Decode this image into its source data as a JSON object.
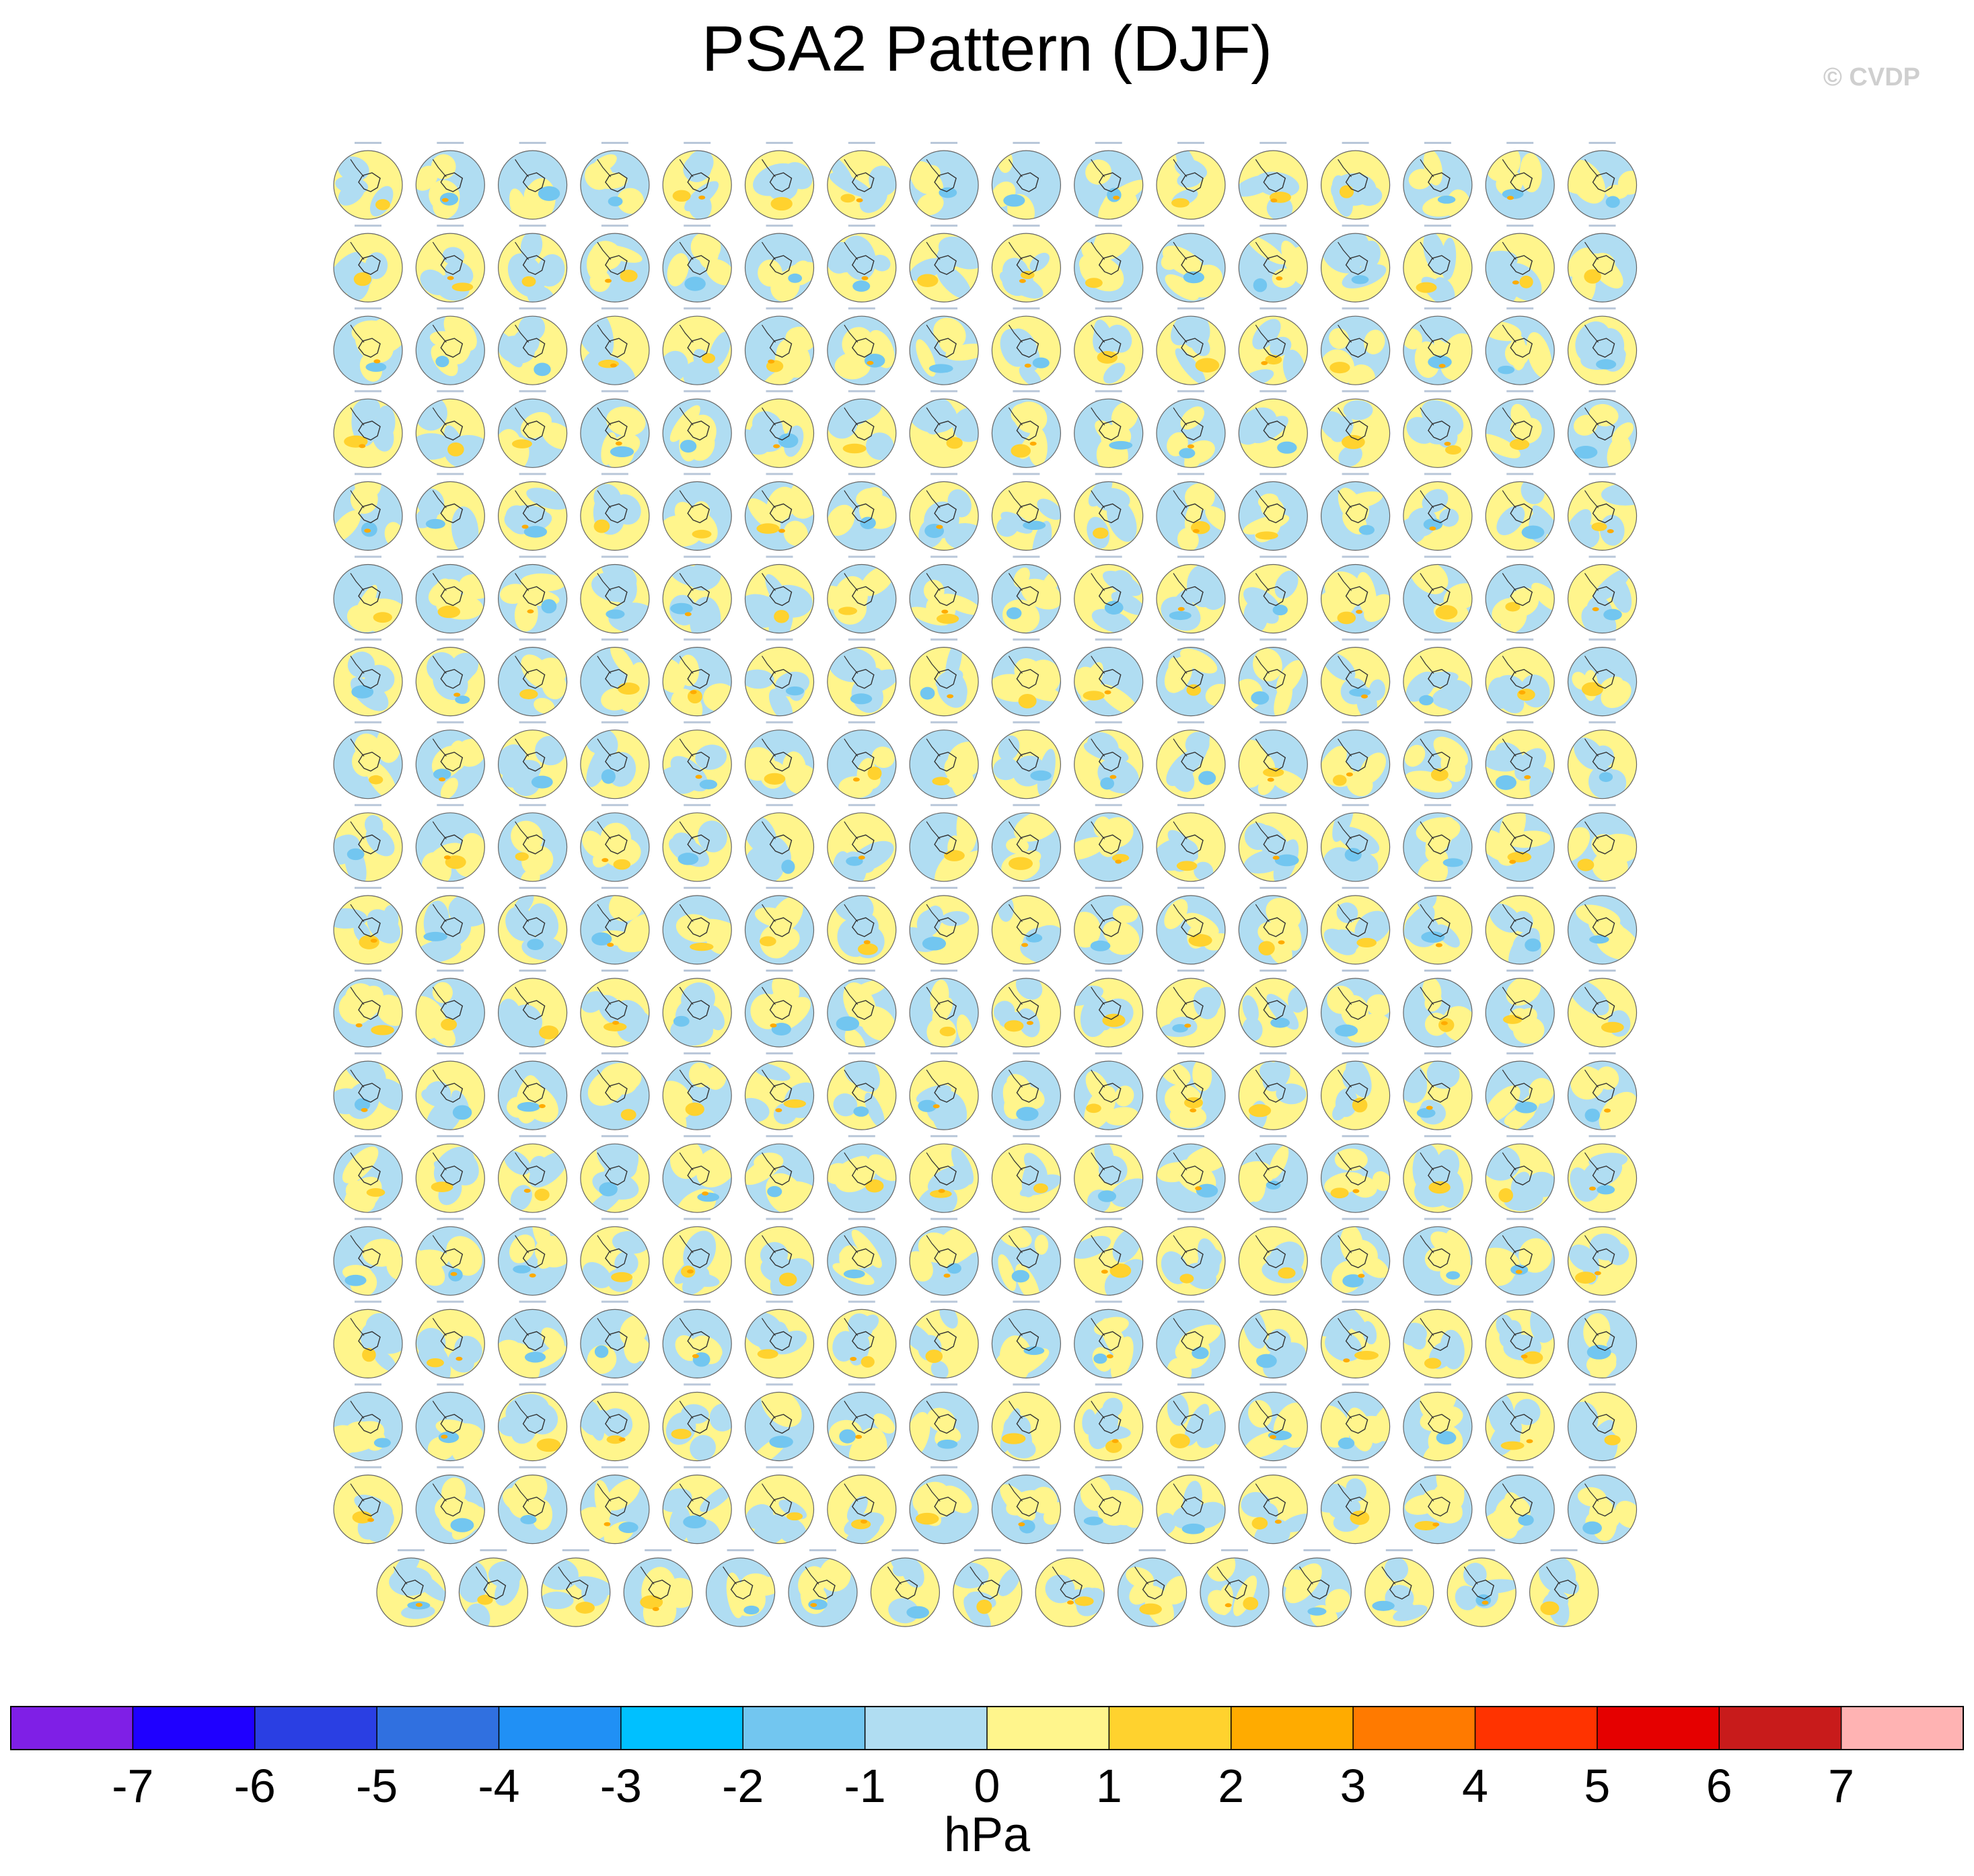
{
  "chart_data": {
    "type": "heatmap",
    "title": "PSA2 Pattern (DJF)",
    "watermark": "© CVDP",
    "units": "hPa",
    "panels": {
      "description_rows": 18,
      "columns_full_rows": 16,
      "last_row_count": 15,
      "total": 287
    },
    "colorbar": {
      "ticks": [
        "-7",
        "-6",
        "-5",
        "-4",
        "-3",
        "-2",
        "-1",
        "0",
        "1",
        "2",
        "3",
        "4",
        "5",
        "6",
        "7"
      ],
      "colors": [
        "#7f1fe6",
        "#1f00ff",
        "#2a3fe3",
        "#3070e0",
        "#2090f5",
        "#00c0ff",
        "#72c6f0",
        "#b0ddf2",
        "#fff58c",
        "#ffd22e",
        "#ffab00",
        "#ff7a00",
        "#ff3300",
        "#e50000",
        "#c81b1b",
        "#ffb3b3"
      ]
    }
  }
}
